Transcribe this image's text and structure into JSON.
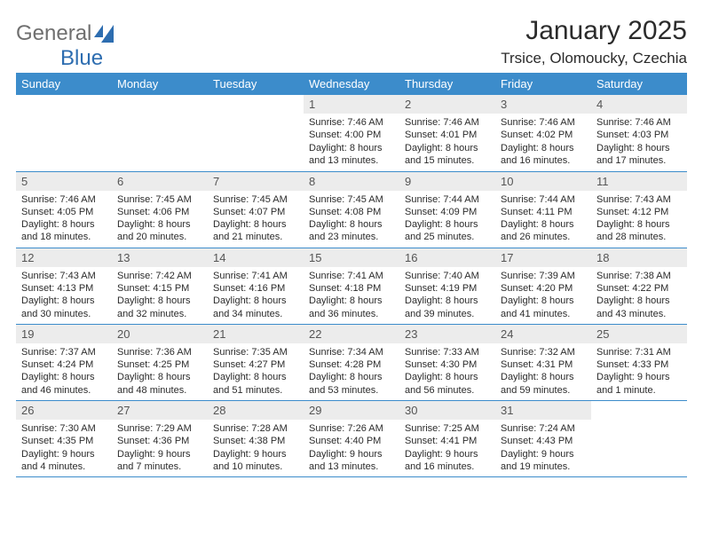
{
  "brand": {
    "part1": "General",
    "part2": "Blue"
  },
  "title": "January 2025",
  "location": "Trsice, Olomoucky, Czechia",
  "colors": {
    "header_bg": "#3c8ccb",
    "header_fg": "#ffffff",
    "daynum_bg": "#ececec"
  },
  "weekdays": [
    "Sunday",
    "Monday",
    "Tuesday",
    "Wednesday",
    "Thursday",
    "Friday",
    "Saturday"
  ],
  "weeks": [
    [
      {
        "n": "",
        "lines": [
          "",
          "",
          "",
          ""
        ]
      },
      {
        "n": "",
        "lines": [
          "",
          "",
          "",
          ""
        ]
      },
      {
        "n": "",
        "lines": [
          "",
          "",
          "",
          ""
        ]
      },
      {
        "n": "1",
        "lines": [
          "Sunrise: 7:46 AM",
          "Sunset: 4:00 PM",
          "Daylight: 8 hours",
          "and 13 minutes."
        ]
      },
      {
        "n": "2",
        "lines": [
          "Sunrise: 7:46 AM",
          "Sunset: 4:01 PM",
          "Daylight: 8 hours",
          "and 15 minutes."
        ]
      },
      {
        "n": "3",
        "lines": [
          "Sunrise: 7:46 AM",
          "Sunset: 4:02 PM",
          "Daylight: 8 hours",
          "and 16 minutes."
        ]
      },
      {
        "n": "4",
        "lines": [
          "Sunrise: 7:46 AM",
          "Sunset: 4:03 PM",
          "Daylight: 8 hours",
          "and 17 minutes."
        ]
      }
    ],
    [
      {
        "n": "5",
        "lines": [
          "Sunrise: 7:46 AM",
          "Sunset: 4:05 PM",
          "Daylight: 8 hours",
          "and 18 minutes."
        ]
      },
      {
        "n": "6",
        "lines": [
          "Sunrise: 7:45 AM",
          "Sunset: 4:06 PM",
          "Daylight: 8 hours",
          "and 20 minutes."
        ]
      },
      {
        "n": "7",
        "lines": [
          "Sunrise: 7:45 AM",
          "Sunset: 4:07 PM",
          "Daylight: 8 hours",
          "and 21 minutes."
        ]
      },
      {
        "n": "8",
        "lines": [
          "Sunrise: 7:45 AM",
          "Sunset: 4:08 PM",
          "Daylight: 8 hours",
          "and 23 minutes."
        ]
      },
      {
        "n": "9",
        "lines": [
          "Sunrise: 7:44 AM",
          "Sunset: 4:09 PM",
          "Daylight: 8 hours",
          "and 25 minutes."
        ]
      },
      {
        "n": "10",
        "lines": [
          "Sunrise: 7:44 AM",
          "Sunset: 4:11 PM",
          "Daylight: 8 hours",
          "and 26 minutes."
        ]
      },
      {
        "n": "11",
        "lines": [
          "Sunrise: 7:43 AM",
          "Sunset: 4:12 PM",
          "Daylight: 8 hours",
          "and 28 minutes."
        ]
      }
    ],
    [
      {
        "n": "12",
        "lines": [
          "Sunrise: 7:43 AM",
          "Sunset: 4:13 PM",
          "Daylight: 8 hours",
          "and 30 minutes."
        ]
      },
      {
        "n": "13",
        "lines": [
          "Sunrise: 7:42 AM",
          "Sunset: 4:15 PM",
          "Daylight: 8 hours",
          "and 32 minutes."
        ]
      },
      {
        "n": "14",
        "lines": [
          "Sunrise: 7:41 AM",
          "Sunset: 4:16 PM",
          "Daylight: 8 hours",
          "and 34 minutes."
        ]
      },
      {
        "n": "15",
        "lines": [
          "Sunrise: 7:41 AM",
          "Sunset: 4:18 PM",
          "Daylight: 8 hours",
          "and 36 minutes."
        ]
      },
      {
        "n": "16",
        "lines": [
          "Sunrise: 7:40 AM",
          "Sunset: 4:19 PM",
          "Daylight: 8 hours",
          "and 39 minutes."
        ]
      },
      {
        "n": "17",
        "lines": [
          "Sunrise: 7:39 AM",
          "Sunset: 4:20 PM",
          "Daylight: 8 hours",
          "and 41 minutes."
        ]
      },
      {
        "n": "18",
        "lines": [
          "Sunrise: 7:38 AM",
          "Sunset: 4:22 PM",
          "Daylight: 8 hours",
          "and 43 minutes."
        ]
      }
    ],
    [
      {
        "n": "19",
        "lines": [
          "Sunrise: 7:37 AM",
          "Sunset: 4:24 PM",
          "Daylight: 8 hours",
          "and 46 minutes."
        ]
      },
      {
        "n": "20",
        "lines": [
          "Sunrise: 7:36 AM",
          "Sunset: 4:25 PM",
          "Daylight: 8 hours",
          "and 48 minutes."
        ]
      },
      {
        "n": "21",
        "lines": [
          "Sunrise: 7:35 AM",
          "Sunset: 4:27 PM",
          "Daylight: 8 hours",
          "and 51 minutes."
        ]
      },
      {
        "n": "22",
        "lines": [
          "Sunrise: 7:34 AM",
          "Sunset: 4:28 PM",
          "Daylight: 8 hours",
          "and 53 minutes."
        ]
      },
      {
        "n": "23",
        "lines": [
          "Sunrise: 7:33 AM",
          "Sunset: 4:30 PM",
          "Daylight: 8 hours",
          "and 56 minutes."
        ]
      },
      {
        "n": "24",
        "lines": [
          "Sunrise: 7:32 AM",
          "Sunset: 4:31 PM",
          "Daylight: 8 hours",
          "and 59 minutes."
        ]
      },
      {
        "n": "25",
        "lines": [
          "Sunrise: 7:31 AM",
          "Sunset: 4:33 PM",
          "Daylight: 9 hours",
          "and 1 minute."
        ]
      }
    ],
    [
      {
        "n": "26",
        "lines": [
          "Sunrise: 7:30 AM",
          "Sunset: 4:35 PM",
          "Daylight: 9 hours",
          "and 4 minutes."
        ]
      },
      {
        "n": "27",
        "lines": [
          "Sunrise: 7:29 AM",
          "Sunset: 4:36 PM",
          "Daylight: 9 hours",
          "and 7 minutes."
        ]
      },
      {
        "n": "28",
        "lines": [
          "Sunrise: 7:28 AM",
          "Sunset: 4:38 PM",
          "Daylight: 9 hours",
          "and 10 minutes."
        ]
      },
      {
        "n": "29",
        "lines": [
          "Sunrise: 7:26 AM",
          "Sunset: 4:40 PM",
          "Daylight: 9 hours",
          "and 13 minutes."
        ]
      },
      {
        "n": "30",
        "lines": [
          "Sunrise: 7:25 AM",
          "Sunset: 4:41 PM",
          "Daylight: 9 hours",
          "and 16 minutes."
        ]
      },
      {
        "n": "31",
        "lines": [
          "Sunrise: 7:24 AM",
          "Sunset: 4:43 PM",
          "Daylight: 9 hours",
          "and 19 minutes."
        ]
      },
      {
        "n": "",
        "lines": [
          "",
          "",
          "",
          ""
        ]
      }
    ]
  ]
}
